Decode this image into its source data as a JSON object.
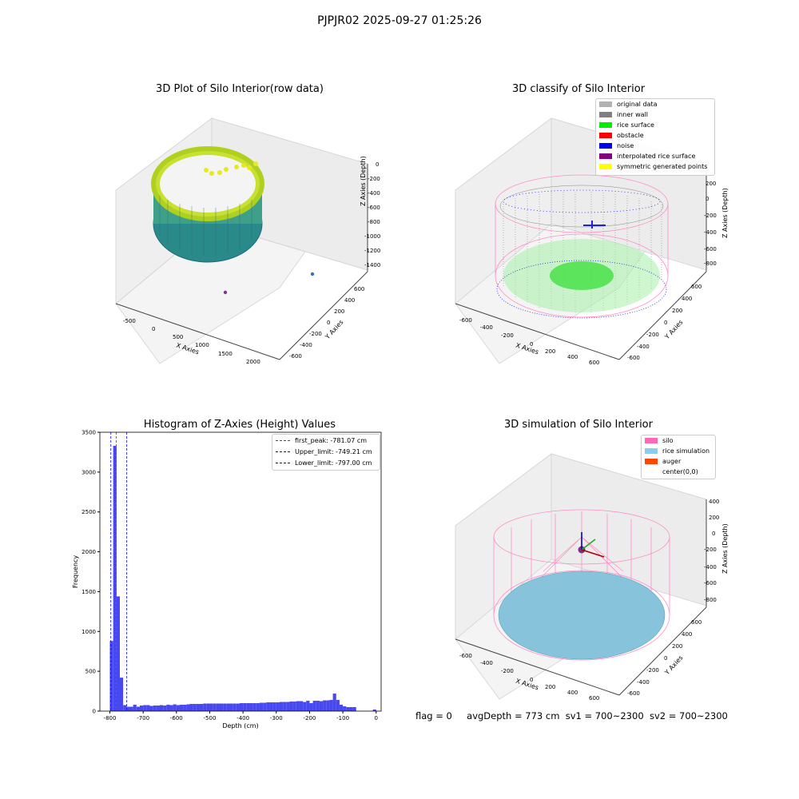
{
  "suptitle": "PJPJR02 2025-09-27 01:25:26",
  "status_line": {
    "flag": "flag = 0",
    "avg_depth": "avgDepth = 773 cm",
    "sv1": "sv1 = 700~2300",
    "sv2": "sv2 = 700~2300"
  },
  "chart_data": [
    {
      "type": "scatter",
      "title": "3D Plot of Silo Interior(row data)",
      "xlabel": "X Axies",
      "ylabel": "Y Axies",
      "zlabel": "Z Axies (Depth)",
      "x_ticks": [
        "-500",
        "0",
        "500",
        "1000",
        "1500",
        "2000"
      ],
      "y_ticks": [
        "-600",
        "-400",
        "-200",
        "0",
        "200",
        "400",
        "600"
      ],
      "z_ticks": [
        "0",
        "-200",
        "-400",
        "-600",
        "-800",
        "-1000",
        "-1200",
        "-1400"
      ],
      "colormap": "viridis",
      "outlier_points": [
        {
          "x": 2000,
          "y": -100,
          "z": -1100
        },
        {
          "x": 450,
          "y": 600,
          "z": -1400
        }
      ]
    },
    {
      "type": "scatter",
      "title": "3D classify of Silo Interior",
      "xlabel": "X Axies",
      "ylabel": "Y Axies",
      "zlabel": "Z Axies (Depth)",
      "x_ticks": [
        "-600",
        "-400",
        "-200",
        "0",
        "200",
        "400",
        "600"
      ],
      "y_ticks": [
        "-600",
        "-400",
        "-200",
        "0",
        "200",
        "400",
        "600"
      ],
      "z_ticks": [
        "200",
        "0",
        "-200",
        "-400",
        "-600",
        "-800"
      ],
      "legend": [
        {
          "label": "original data",
          "color": "#b2b2b2"
        },
        {
          "label": "inner wall",
          "color": "#808080"
        },
        {
          "label": "rice surface",
          "color": "#00ee00"
        },
        {
          "label": "obstacle",
          "color": "#ff0000"
        },
        {
          "label": "noise",
          "color": "#0000ee"
        },
        {
          "label": "interpolated rice surface",
          "color": "#800080"
        },
        {
          "label": "symmetric generated points",
          "color": "#ffff00"
        }
      ]
    },
    {
      "type": "bar",
      "title": "Histogram of Z-Axies (Height) Values",
      "xlabel": "Depth (cm)",
      "ylabel": "Frequency",
      "xlim": [
        -830,
        15
      ],
      "ylim": [
        0,
        3500
      ],
      "x_ticks": [
        -800,
        -700,
        -600,
        -500,
        -400,
        -300,
        -200,
        -100,
        0
      ],
      "y_ticks": [
        0,
        500,
        1000,
        1500,
        2000,
        2500,
        3000,
        3500
      ],
      "bin_width": 10,
      "bins": [
        {
          "x": -800,
          "v": 880
        },
        {
          "x": -790,
          "v": 3330
        },
        {
          "x": -780,
          "v": 1440
        },
        {
          "x": -770,
          "v": 420
        },
        {
          "x": -760,
          "v": 75
        },
        {
          "x": -750,
          "v": 55
        },
        {
          "x": -740,
          "v": 55
        },
        {
          "x": -730,
          "v": 80
        },
        {
          "x": -720,
          "v": 55
        },
        {
          "x": -710,
          "v": 70
        },
        {
          "x": -700,
          "v": 75
        },
        {
          "x": -690,
          "v": 75
        },
        {
          "x": -680,
          "v": 65
        },
        {
          "x": -670,
          "v": 70
        },
        {
          "x": -660,
          "v": 70
        },
        {
          "x": -650,
          "v": 75
        },
        {
          "x": -640,
          "v": 70
        },
        {
          "x": -630,
          "v": 80
        },
        {
          "x": -620,
          "v": 75
        },
        {
          "x": -610,
          "v": 85
        },
        {
          "x": -600,
          "v": 75
        },
        {
          "x": -590,
          "v": 80
        },
        {
          "x": -580,
          "v": 80
        },
        {
          "x": -570,
          "v": 85
        },
        {
          "x": -560,
          "v": 90
        },
        {
          "x": -550,
          "v": 90
        },
        {
          "x": -540,
          "v": 90
        },
        {
          "x": -530,
          "v": 90
        },
        {
          "x": -520,
          "v": 95
        },
        {
          "x": -510,
          "v": 95
        },
        {
          "x": -500,
          "v": 95
        },
        {
          "x": -490,
          "v": 95
        },
        {
          "x": -480,
          "v": 95
        },
        {
          "x": -470,
          "v": 95
        },
        {
          "x": -460,
          "v": 95
        },
        {
          "x": -450,
          "v": 95
        },
        {
          "x": -440,
          "v": 95
        },
        {
          "x": -430,
          "v": 95
        },
        {
          "x": -420,
          "v": 95
        },
        {
          "x": -410,
          "v": 100
        },
        {
          "x": -400,
          "v": 100
        },
        {
          "x": -390,
          "v": 100
        },
        {
          "x": -380,
          "v": 100
        },
        {
          "x": -370,
          "v": 100
        },
        {
          "x": -360,
          "v": 100
        },
        {
          "x": -350,
          "v": 105
        },
        {
          "x": -340,
          "v": 105
        },
        {
          "x": -330,
          "v": 110
        },
        {
          "x": -320,
          "v": 110
        },
        {
          "x": -310,
          "v": 110
        },
        {
          "x": -300,
          "v": 110
        },
        {
          "x": -290,
          "v": 115
        },
        {
          "x": -280,
          "v": 115
        },
        {
          "x": -270,
          "v": 115
        },
        {
          "x": -260,
          "v": 120
        },
        {
          "x": -250,
          "v": 120
        },
        {
          "x": -240,
          "v": 125
        },
        {
          "x": -230,
          "v": 125
        },
        {
          "x": -220,
          "v": 115
        },
        {
          "x": -210,
          "v": 130
        },
        {
          "x": -200,
          "v": 100
        },
        {
          "x": -190,
          "v": 130
        },
        {
          "x": -180,
          "v": 130
        },
        {
          "x": -170,
          "v": 125
        },
        {
          "x": -160,
          "v": 135
        },
        {
          "x": -150,
          "v": 135
        },
        {
          "x": -140,
          "v": 140
        },
        {
          "x": -130,
          "v": 220
        },
        {
          "x": -120,
          "v": 140
        },
        {
          "x": -110,
          "v": 80
        },
        {
          "x": -100,
          "v": 60
        },
        {
          "x": -90,
          "v": 50
        },
        {
          "x": -80,
          "v": 50
        },
        {
          "x": -70,
          "v": 50
        },
        {
          "x": -60,
          "v": 0
        },
        {
          "x": -50,
          "v": 0
        },
        {
          "x": -40,
          "v": 0
        },
        {
          "x": -30,
          "v": 0
        },
        {
          "x": -20,
          "v": 0
        },
        {
          "x": -10,
          "v": 20
        }
      ],
      "vlines": [
        {
          "x": -781.07,
          "label": "first_peak: -781.07 cm",
          "color": "#ff0000"
        },
        {
          "x": -749.21,
          "label": "Upper_limit: -749.21 cm",
          "color": "#0000ff"
        },
        {
          "x": -797.0,
          "label": "Lower_limit: -797.00 cm",
          "color": "#0000ff"
        }
      ],
      "bar_color": "#4848f0"
    },
    {
      "type": "scatter",
      "title": "3D simulation of Silo Interior",
      "xlabel": "X Axies",
      "ylabel": "Y Axies",
      "zlabel": "Z Axies (Depth)",
      "x_ticks": [
        "-600",
        "-400",
        "-200",
        "0",
        "200",
        "400",
        "600"
      ],
      "y_ticks": [
        "-600",
        "-400",
        "-200",
        "0",
        "200",
        "400",
        "600"
      ],
      "z_ticks": [
        "400",
        "200",
        "0",
        "-200",
        "-400",
        "-600",
        "-800"
      ],
      "legend": [
        {
          "label": "silo",
          "color": "#ff69b4"
        },
        {
          "label": "rice simulation",
          "color": "#87ceeb"
        },
        {
          "label": "auger",
          "color": "#ff4500"
        },
        {
          "label": "center(0,0)",
          "color": ""
        }
      ]
    }
  ]
}
